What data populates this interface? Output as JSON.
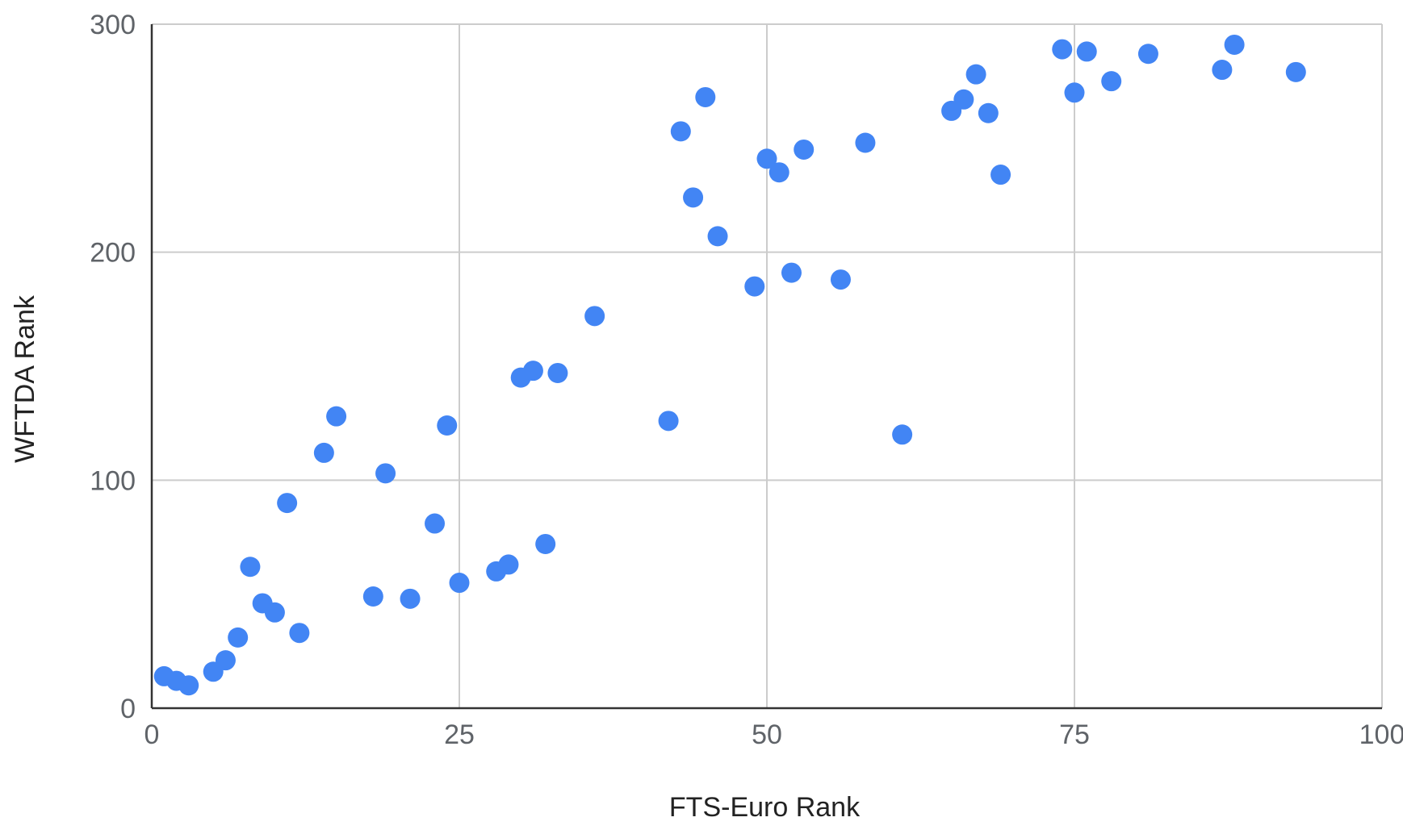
{
  "chart_data": {
    "type": "scatter",
    "title": "",
    "xlabel": "FTS-Euro Rank",
    "ylabel": "WFTDA Rank",
    "xlim": [
      0,
      100
    ],
    "ylim": [
      0,
      300
    ],
    "x_ticks": [
      0,
      25,
      50,
      75,
      100
    ],
    "y_ticks": [
      0,
      100,
      200,
      300
    ],
    "x_tick_labels": [
      "0",
      "25",
      "50",
      "75",
      "100"
    ],
    "y_tick_labels": [
      "0",
      "100",
      "200",
      "300"
    ],
    "grid": true,
    "legend": "none",
    "colors": {
      "point": "#4285f4",
      "grid": "#cccccc",
      "axis": "#333333"
    },
    "points": [
      {
        "x": 1,
        "y": 14
      },
      {
        "x": 2,
        "y": 12
      },
      {
        "x": 3,
        "y": 10
      },
      {
        "x": 5,
        "y": 16
      },
      {
        "x": 6,
        "y": 21
      },
      {
        "x": 7,
        "y": 31
      },
      {
        "x": 8,
        "y": 62
      },
      {
        "x": 9,
        "y": 46
      },
      {
        "x": 10,
        "y": 42
      },
      {
        "x": 11,
        "y": 90
      },
      {
        "x": 12,
        "y": 33
      },
      {
        "x": 14,
        "y": 112
      },
      {
        "x": 15,
        "y": 128
      },
      {
        "x": 18,
        "y": 49
      },
      {
        "x": 19,
        "y": 103
      },
      {
        "x": 21,
        "y": 48
      },
      {
        "x": 23,
        "y": 81
      },
      {
        "x": 24,
        "y": 124
      },
      {
        "x": 25,
        "y": 55
      },
      {
        "x": 28,
        "y": 60
      },
      {
        "x": 29,
        "y": 63
      },
      {
        "x": 30,
        "y": 145
      },
      {
        "x": 31,
        "y": 148
      },
      {
        "x": 32,
        "y": 72
      },
      {
        "x": 33,
        "y": 147
      },
      {
        "x": 36,
        "y": 172
      },
      {
        "x": 42,
        "y": 126
      },
      {
        "x": 43,
        "y": 253
      },
      {
        "x": 44,
        "y": 224
      },
      {
        "x": 45,
        "y": 268
      },
      {
        "x": 46,
        "y": 207
      },
      {
        "x": 49,
        "y": 185
      },
      {
        "x": 50,
        "y": 241
      },
      {
        "x": 51,
        "y": 235
      },
      {
        "x": 52,
        "y": 191
      },
      {
        "x": 53,
        "y": 245
      },
      {
        "x": 56,
        "y": 188
      },
      {
        "x": 58,
        "y": 248
      },
      {
        "x": 61,
        "y": 120
      },
      {
        "x": 65,
        "y": 262
      },
      {
        "x": 66,
        "y": 267
      },
      {
        "x": 67,
        "y": 278
      },
      {
        "x": 68,
        "y": 261
      },
      {
        "x": 69,
        "y": 234
      },
      {
        "x": 74,
        "y": 289
      },
      {
        "x": 75,
        "y": 270
      },
      {
        "x": 76,
        "y": 288
      },
      {
        "x": 78,
        "y": 275
      },
      {
        "x": 81,
        "y": 287
      },
      {
        "x": 87,
        "y": 280
      },
      {
        "x": 88,
        "y": 291
      },
      {
        "x": 93,
        "y": 279
      }
    ]
  }
}
